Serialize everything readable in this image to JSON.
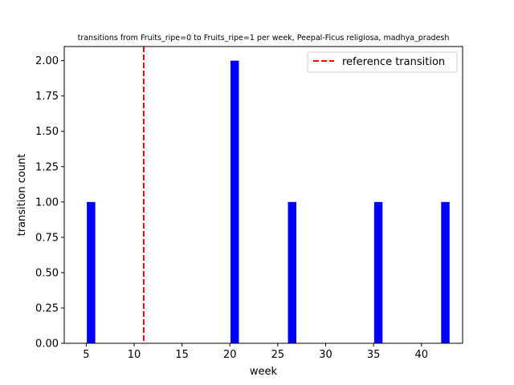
{
  "chart_data": {
    "type": "bar",
    "title": "transitions from Fruits_ripe=0 to Fruits_ripe=1 per week, Peepal-Ficus religiosa, madhya_pradesh",
    "xlabel": "week",
    "ylabel": "transition count",
    "x": [
      5,
      20,
      26,
      35,
      42
    ],
    "values": [
      1,
      2,
      1,
      1,
      1
    ],
    "bar_color": "#0000ff",
    "xlim": [
      2.7,
      44.3
    ],
    "ylim": [
      0,
      2.1
    ],
    "xticks": [
      5,
      10,
      15,
      20,
      25,
      30,
      35,
      40
    ],
    "xtick_labels": [
      "5",
      "10",
      "15",
      "20",
      "25",
      "30",
      "35",
      "40"
    ],
    "yticks": [
      0,
      0.25,
      0.5,
      0.75,
      1.0,
      1.25,
      1.5,
      1.75,
      2.0
    ],
    "ytick_labels": [
      "0.00",
      "0.25",
      "0.50",
      "0.75",
      "1.00",
      "1.25",
      "1.50",
      "1.75",
      "2.00"
    ],
    "reference_line": {
      "x": 11,
      "label": "reference transition",
      "color": "#ff0000",
      "style": "dashed"
    },
    "legend": {
      "placement": "top-right",
      "entries": [
        "reference transition"
      ]
    },
    "grid": false
  }
}
